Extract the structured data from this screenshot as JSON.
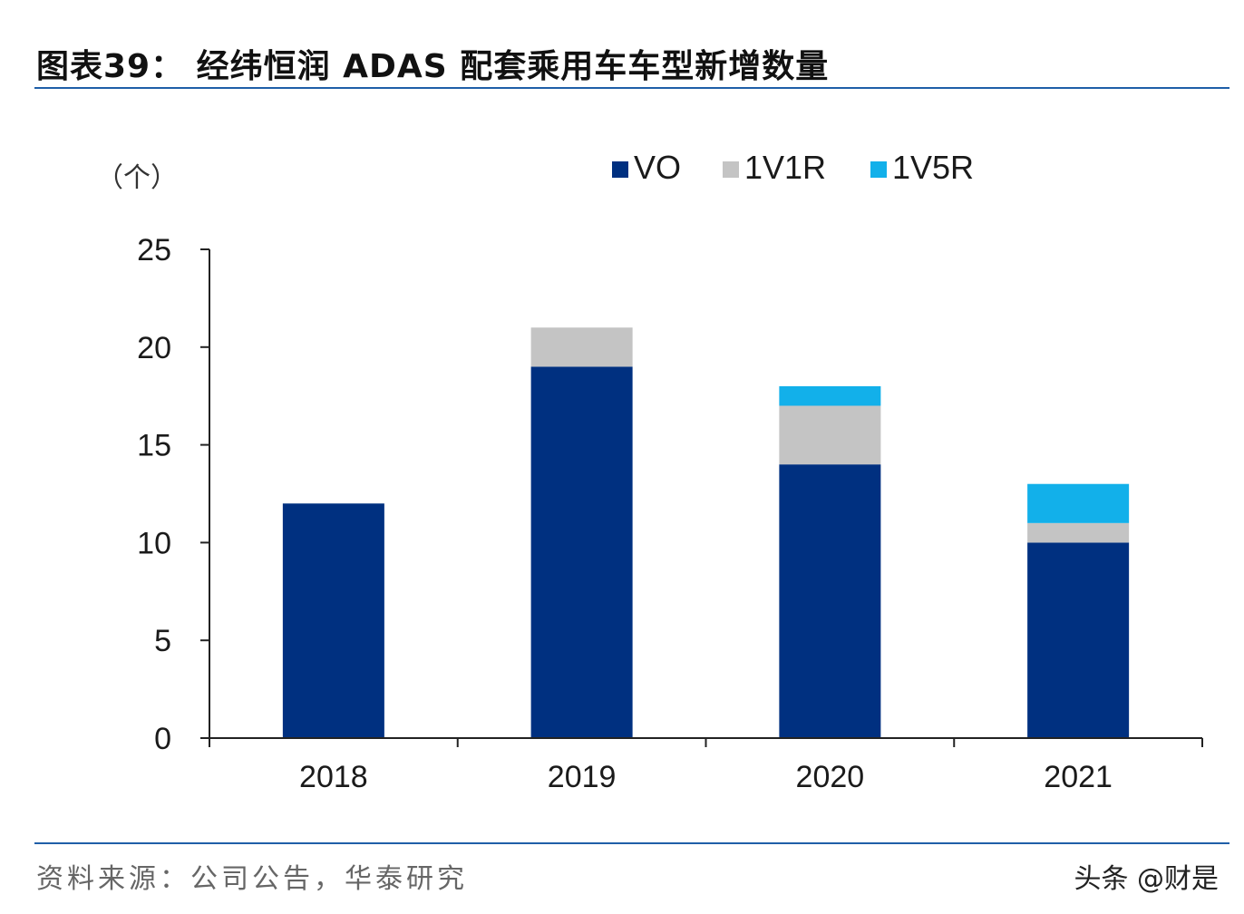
{
  "title": "图表39：  经纬恒润 ADAS 配套乘用车车型新增数量",
  "source": "资料来源：公司公告，华泰研究",
  "watermark": "头条 @财是",
  "colors": {
    "VO": "#003080",
    "1V1R": "#c4c4c4",
    "1V5R": "#12b0ea",
    "rule": "#1f5fa8",
    "axis": "#222222"
  },
  "chart_data": {
    "type": "bar",
    "stacked": true,
    "unit_label": "（个）",
    "categories": [
      "2018",
      "2019",
      "2020",
      "2021"
    ],
    "series": [
      {
        "name": "VO",
        "values": [
          12,
          19,
          14,
          10
        ]
      },
      {
        "name": "1V1R",
        "values": [
          0,
          2,
          3,
          1
        ]
      },
      {
        "name": "1V5R",
        "values": [
          0,
          0,
          1,
          2
        ]
      }
    ],
    "ylim": [
      0,
      25
    ],
    "yticks": [
      0,
      5,
      10,
      15,
      20,
      25
    ],
    "legend_position": "top-right",
    "grid": false
  }
}
